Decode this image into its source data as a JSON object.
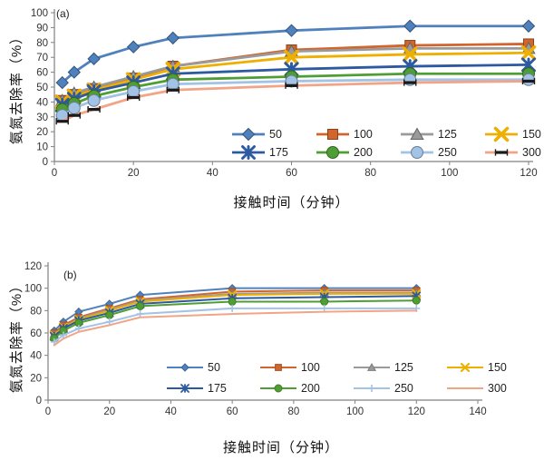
{
  "figure": {
    "background": "#ffffff",
    "axis_color": "#808080",
    "tick_text_color": "#333333",
    "marker_accent_black": "#1a1a1a"
  },
  "chart_data": [
    {
      "id": "a",
      "type": "line",
      "panel_label": "(a)",
      "xlabel": "接触时间（分钟）",
      "ylabel": "氨氮去除率（%）",
      "xlim": [
        0,
        120
      ],
      "xstep": 20,
      "ylim": [
        0,
        100
      ],
      "ystep": 10,
      "grid": false,
      "legend_position": "inside-bottom-right",
      "x": [
        2,
        5,
        10,
        20,
        30,
        60,
        90,
        120
      ],
      "series": [
        {
          "name": "50",
          "color": "#4F81BD",
          "marker": "diamond",
          "values": [
            53,
            60,
            69,
            77,
            83,
            88,
            91,
            91
          ]
        },
        {
          "name": "100",
          "color": "#D2642D",
          "marker": "square",
          "values": [
            41,
            45,
            49,
            56,
            64,
            75,
            78,
            79
          ]
        },
        {
          "name": "125",
          "color": "#9A9A9A",
          "marker": "triangle",
          "values": [
            41,
            46,
            50,
            57,
            64,
            74,
            76,
            76
          ]
        },
        {
          "name": "150",
          "color": "#EFAF00",
          "marker": "xcross",
          "values": [
            40,
            44,
            48,
            55,
            62,
            70,
            72,
            73
          ]
        },
        {
          "name": "175",
          "color": "#2C5AA0",
          "marker": "star",
          "values": [
            38,
            42,
            47,
            53,
            59,
            62,
            64,
            65
          ]
        },
        {
          "name": "200",
          "color": "#4F9E35",
          "marker": "circle",
          "values": [
            35,
            39,
            44,
            50,
            55,
            57,
            59,
            59
          ]
        },
        {
          "name": "250",
          "color": "#A2C2E6",
          "marker": "circle",
          "values": [
            31,
            36,
            41,
            47,
            52,
            54,
            55,
            55
          ]
        },
        {
          "name": "300",
          "color": "#F2A487",
          "marker": "dash",
          "values": [
            27,
            31,
            35,
            43,
            48,
            51,
            53,
            54
          ]
        }
      ]
    },
    {
      "id": "b",
      "type": "line",
      "panel_label": "(b)",
      "xlabel": "接触时间（分钟）",
      "ylabel": "氨氮去除率（%）",
      "xlim": [
        0,
        140
      ],
      "xstep": 20,
      "ylim": [
        0,
        120
      ],
      "ystep": 20,
      "grid": false,
      "legend_position": "inside-bottom-right",
      "x": [
        2,
        5,
        10,
        20,
        30,
        60,
        90,
        120
      ],
      "series": [
        {
          "name": "50",
          "color": "#4F81BD",
          "marker": "diamond",
          "values": [
            62,
            70,
            79,
            86,
            94,
            100,
            100,
            100
          ]
        },
        {
          "name": "100",
          "color": "#D2642D",
          "marker": "square",
          "values": [
            60,
            67,
            74,
            82,
            90,
            97,
            98,
            98
          ]
        },
        {
          "name": "125",
          "color": "#9A9A9A",
          "marker": "triangle",
          "values": [
            59,
            65,
            73,
            81,
            89,
            95,
            96,
            96
          ]
        },
        {
          "name": "150",
          "color": "#EFAF00",
          "marker": "xcross",
          "values": [
            58,
            65,
            72,
            80,
            88,
            94,
            95,
            95
          ]
        },
        {
          "name": "175",
          "color": "#2C5AA0",
          "marker": "star",
          "values": [
            57,
            64,
            71,
            78,
            86,
            91,
            92,
            93
          ]
        },
        {
          "name": "200",
          "color": "#4F9E35",
          "marker": "circle",
          "values": [
            55,
            62,
            69,
            76,
            84,
            88,
            88,
            89
          ]
        },
        {
          "name": "250",
          "color": "#A2C2E6",
          "marker": "plus",
          "values": [
            52,
            58,
            64,
            70,
            77,
            82,
            82,
            82
          ]
        },
        {
          "name": "300",
          "color": "#F2A487",
          "marker": "none",
          "values": [
            49,
            55,
            61,
            67,
            74,
            77,
            79,
            80
          ]
        }
      ]
    }
  ]
}
